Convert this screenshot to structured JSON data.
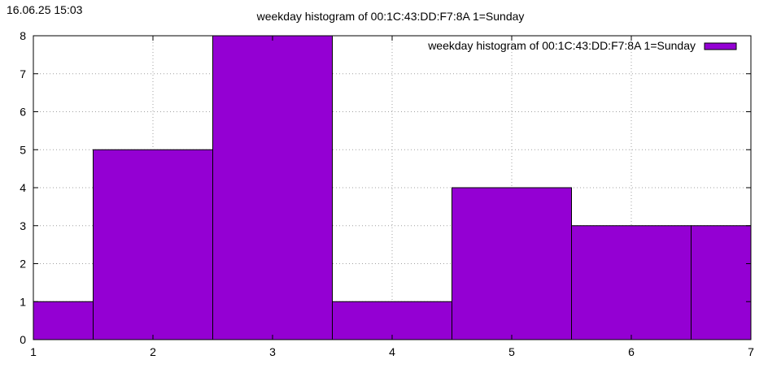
{
  "timestamp": "16.06.25 15:03",
  "colors": {
    "bar_fill": "#9400d3",
    "bar_stroke": "#000000",
    "grid": "#a0a0a0",
    "axis": "#000000"
  },
  "chart_data": {
    "type": "bar",
    "title": "weekday histogram of 00:1C:43:DD:F7:8A 1=Sunday",
    "xlabel": "",
    "ylabel": "",
    "x": [
      1,
      2,
      3,
      4,
      5,
      6,
      7
    ],
    "values": [
      1,
      5,
      8,
      1,
      4,
      3,
      3
    ],
    "bar_width": 1,
    "xlim": [
      1,
      7
    ],
    "ylim": [
      0,
      8
    ],
    "xticks": [
      1,
      2,
      3,
      4,
      5,
      6,
      7
    ],
    "yticks": [
      0,
      1,
      2,
      3,
      4,
      5,
      6,
      7,
      8
    ],
    "grid": true,
    "legend": {
      "position": "top-right",
      "entries": [
        "weekday histogram of 00:1C:43:DD:F7:8A 1=Sunday"
      ]
    }
  }
}
